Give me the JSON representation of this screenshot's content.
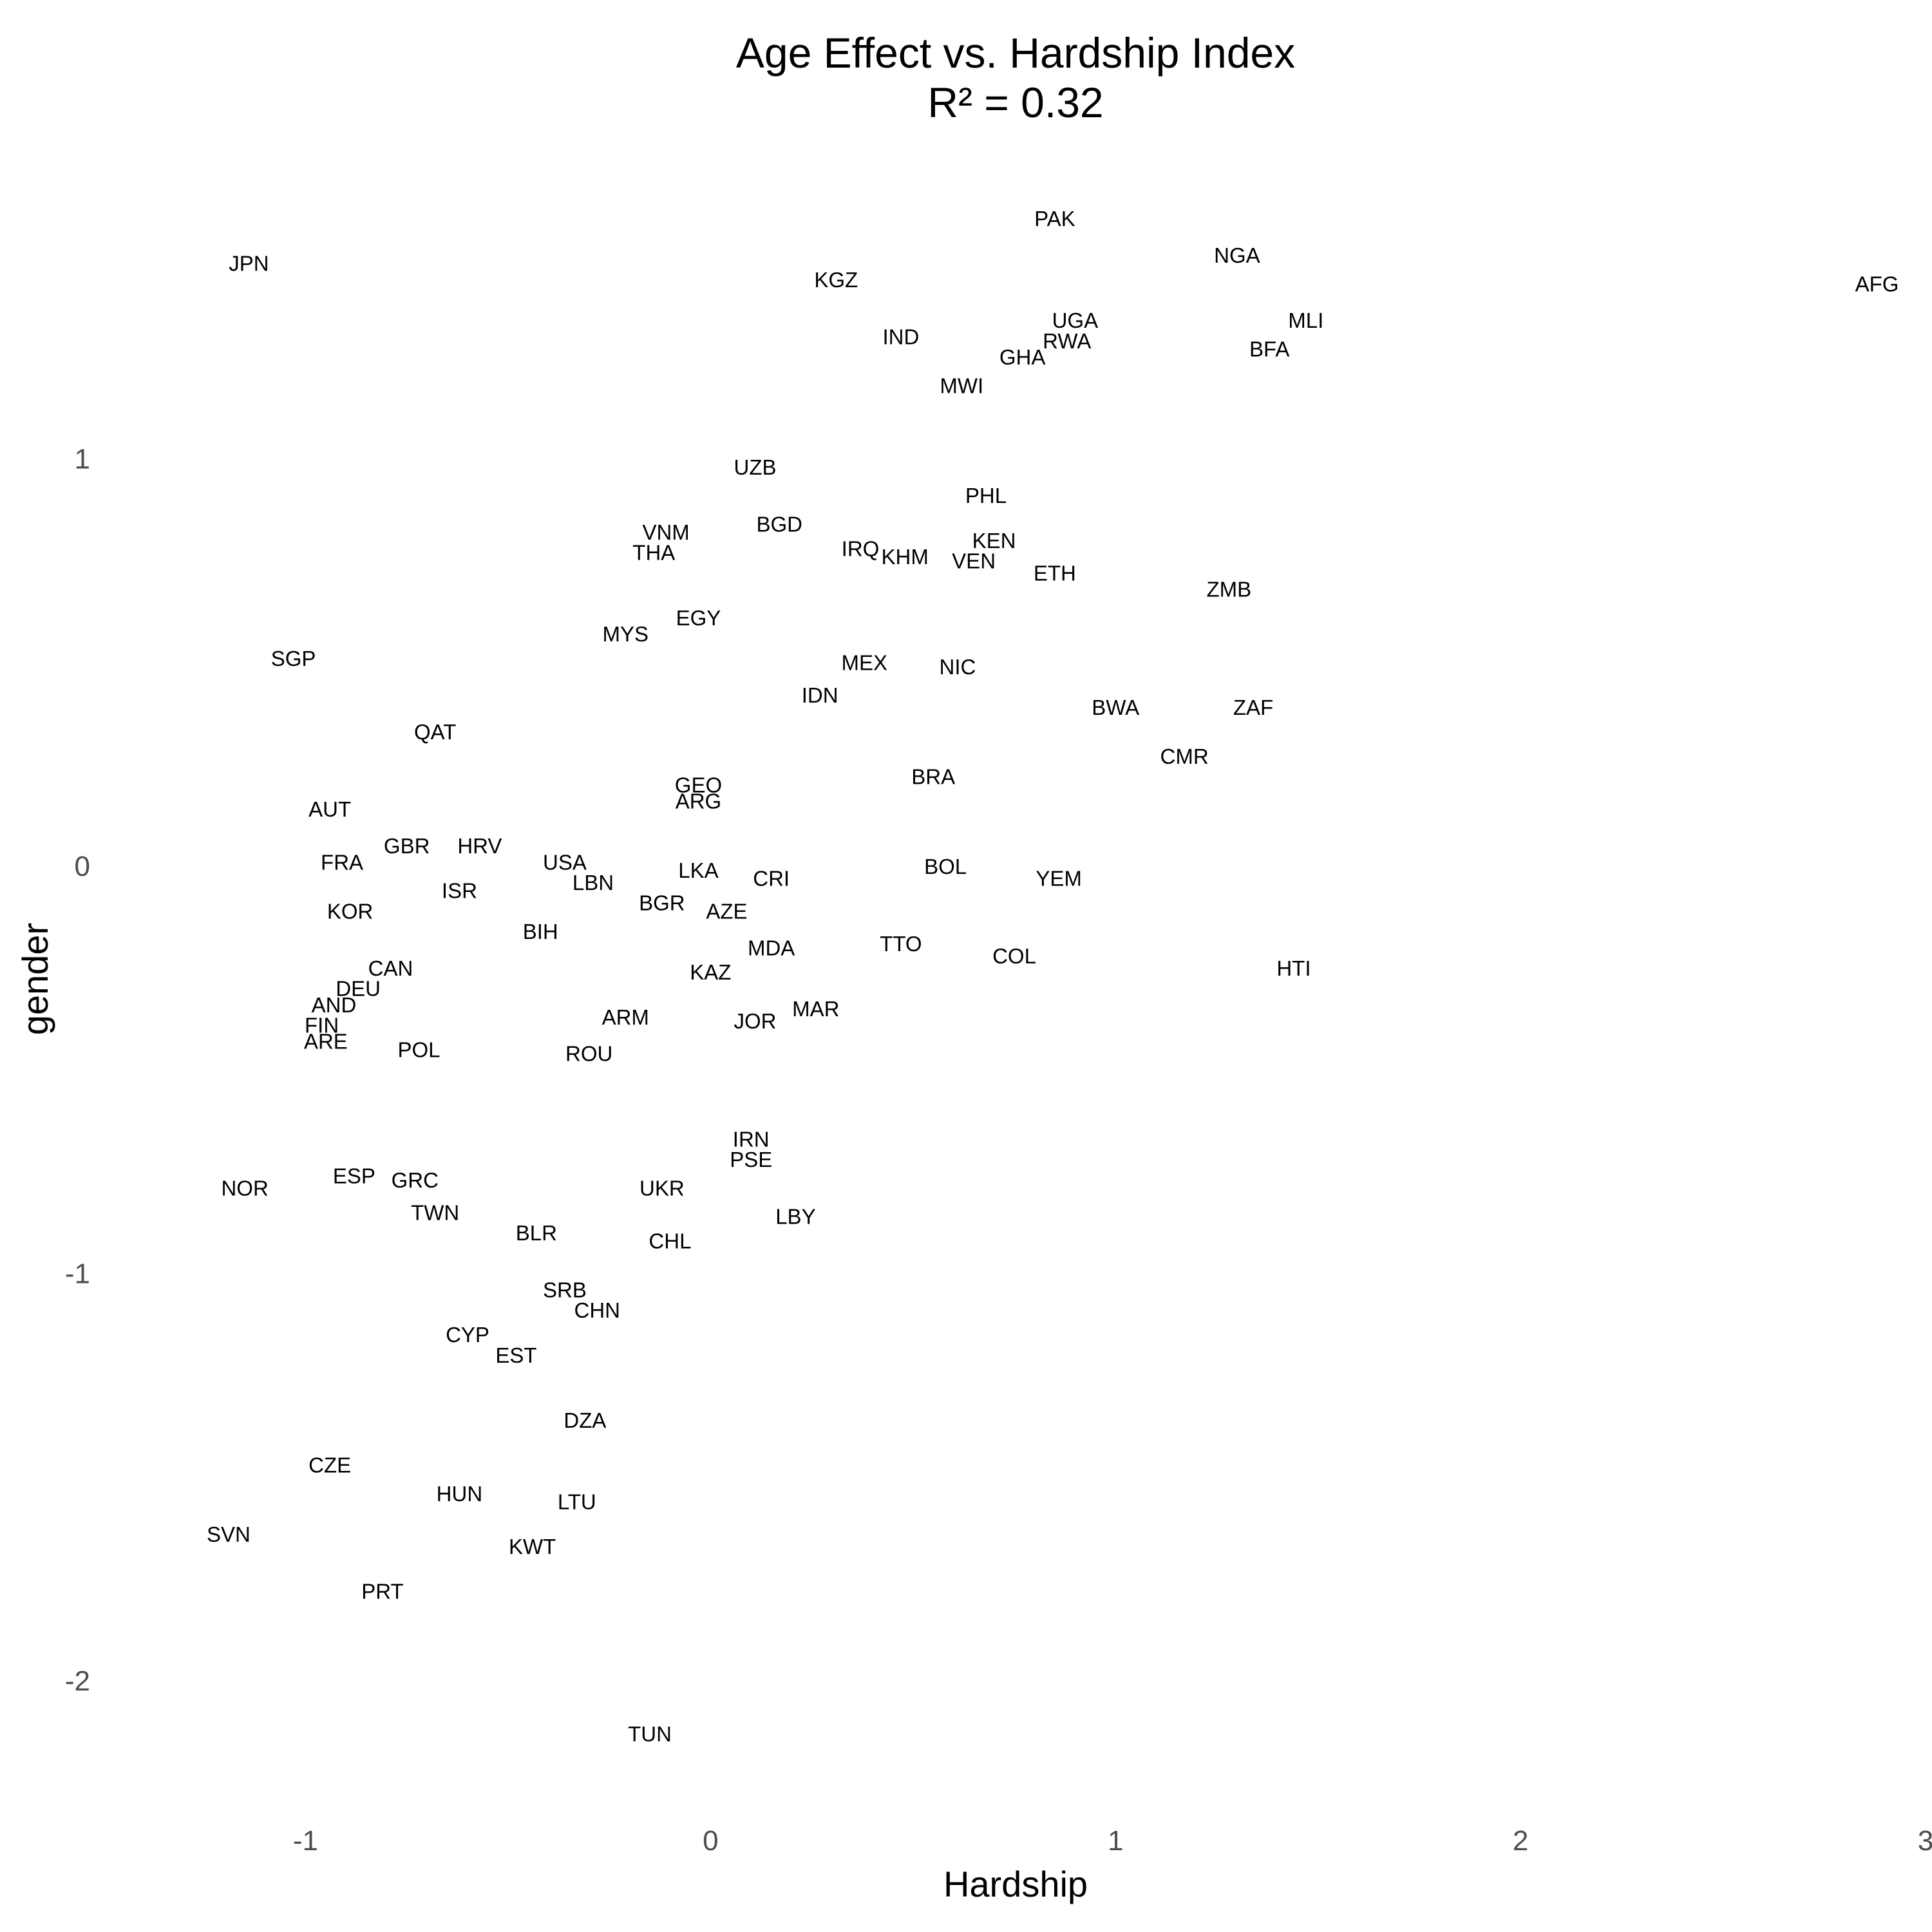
{
  "chart_data": {
    "type": "scatter",
    "title": [
      "Age Effect vs. Hardship Index",
      "R² = 0.32"
    ],
    "xlabel": "Hardship",
    "ylabel": "gender",
    "xlim": [
      -1.5,
      3.0
    ],
    "ylim": [
      -2.3,
      1.7
    ],
    "xticks": [
      -1,
      0,
      1,
      2,
      3
    ],
    "xtick_labels": [
      "-1",
      "0",
      "1",
      "2",
      "3"
    ],
    "yticks": [
      -2,
      -1,
      0,
      1
    ],
    "ytick_labels": [
      "-2",
      "-1",
      "0",
      "1"
    ],
    "grid": false,
    "markers": "text-labels",
    "points": [
      {
        "label": "PAK",
        "x": 0.85,
        "y": 1.59
      },
      {
        "label": "JPN",
        "x": -1.14,
        "y": 1.48
      },
      {
        "label": "NGA",
        "x": 1.3,
        "y": 1.5
      },
      {
        "label": "KGZ",
        "x": 0.31,
        "y": 1.44
      },
      {
        "label": "AFG",
        "x": 2.88,
        "y": 1.43
      },
      {
        "label": "UGA",
        "x": 0.9,
        "y": 1.34
      },
      {
        "label": "MLI",
        "x": 1.47,
        "y": 1.34
      },
      {
        "label": "IND",
        "x": 0.47,
        "y": 1.3
      },
      {
        "label": "RWA",
        "x": 0.88,
        "y": 1.29
      },
      {
        "label": "GHA",
        "x": 0.77,
        "y": 1.25
      },
      {
        "label": "BFA",
        "x": 1.38,
        "y": 1.27
      },
      {
        "label": "MWI",
        "x": 0.62,
        "y": 1.18
      },
      {
        "label": "UZB",
        "x": 0.11,
        "y": 0.98
      },
      {
        "label": "PHL",
        "x": 0.68,
        "y": 0.91
      },
      {
        "label": "BGD",
        "x": 0.17,
        "y": 0.84
      },
      {
        "label": "VNM",
        "x": -0.11,
        "y": 0.82
      },
      {
        "label": "KEN",
        "x": 0.7,
        "y": 0.8
      },
      {
        "label": "IRQ",
        "x": 0.37,
        "y": 0.78
      },
      {
        "label": "THA",
        "x": -0.14,
        "y": 0.77
      },
      {
        "label": "KHM",
        "x": 0.48,
        "y": 0.76
      },
      {
        "label": "VEN",
        "x": 0.65,
        "y": 0.75
      },
      {
        "label": "ETH",
        "x": 0.85,
        "y": 0.72
      },
      {
        "label": "ZMB",
        "x": 1.28,
        "y": 0.68
      },
      {
        "label": "EGY",
        "x": -0.03,
        "y": 0.61
      },
      {
        "label": "MYS",
        "x": -0.21,
        "y": 0.57
      },
      {
        "label": "SGP",
        "x": -1.03,
        "y": 0.51
      },
      {
        "label": "MEX",
        "x": 0.38,
        "y": 0.5
      },
      {
        "label": "NIC",
        "x": 0.61,
        "y": 0.49
      },
      {
        "label": "IDN",
        "x": 0.27,
        "y": 0.42
      },
      {
        "label": "BWA",
        "x": 1.0,
        "y": 0.39
      },
      {
        "label": "ZAF",
        "x": 1.34,
        "y": 0.39
      },
      {
        "label": "QAT",
        "x": -0.68,
        "y": 0.33
      },
      {
        "label": "CMR",
        "x": 1.17,
        "y": 0.27
      },
      {
        "label": "GEO",
        "x": -0.03,
        "y": 0.2
      },
      {
        "label": "BRA",
        "x": 0.55,
        "y": 0.22
      },
      {
        "label": "ARG",
        "x": -0.03,
        "y": 0.16
      },
      {
        "label": "AUT",
        "x": -0.94,
        "y": 0.14
      },
      {
        "label": "GBR",
        "x": -0.75,
        "y": 0.05
      },
      {
        "label": "HRV",
        "x": -0.57,
        "y": 0.05
      },
      {
        "label": "USA",
        "x": -0.36,
        "y": 0.01
      },
      {
        "label": "FRA",
        "x": -0.91,
        "y": 0.01
      },
      {
        "label": "BOL",
        "x": 0.58,
        "y": 0.0
      },
      {
        "label": "LKA",
        "x": -0.03,
        "y": -0.01
      },
      {
        "label": "CRI",
        "x": 0.15,
        "y": -0.03
      },
      {
        "label": "YEM",
        "x": 0.86,
        "y": -0.03
      },
      {
        "label": "LBN",
        "x": -0.29,
        "y": -0.04
      },
      {
        "label": "ISR",
        "x": -0.62,
        "y": -0.06
      },
      {
        "label": "BGR",
        "x": -0.12,
        "y": -0.09
      },
      {
        "label": "KOR",
        "x": -0.89,
        "y": -0.11
      },
      {
        "label": "AZE",
        "x": 0.04,
        "y": -0.11
      },
      {
        "label": "BIH",
        "x": -0.42,
        "y": -0.16
      },
      {
        "label": "TTO",
        "x": 0.47,
        "y": -0.19
      },
      {
        "label": "MDA",
        "x": 0.15,
        "y": -0.2
      },
      {
        "label": "COL",
        "x": 0.75,
        "y": -0.22
      },
      {
        "label": "CAN",
        "x": -0.79,
        "y": -0.25
      },
      {
        "label": "HTI",
        "x": 1.44,
        "y": -0.25
      },
      {
        "label": "KAZ",
        "x": 0.0,
        "y": -0.26
      },
      {
        "label": "DEU",
        "x": -0.87,
        "y": -0.3
      },
      {
        "label": "AND",
        "x": -0.93,
        "y": -0.34
      },
      {
        "label": "MAR",
        "x": 0.26,
        "y": -0.35
      },
      {
        "label": "ARM",
        "x": -0.21,
        "y": -0.37
      },
      {
        "label": "JOR",
        "x": 0.11,
        "y": -0.38
      },
      {
        "label": "FIN",
        "x": -0.96,
        "y": -0.39
      },
      {
        "label": "ARE",
        "x": -0.95,
        "y": -0.43
      },
      {
        "label": "POL",
        "x": -0.72,
        "y": -0.45
      },
      {
        "label": "ROU",
        "x": -0.3,
        "y": -0.46
      },
      {
        "label": "IRN",
        "x": 0.1,
        "y": -0.67
      },
      {
        "label": "PSE",
        "x": 0.1,
        "y": -0.72
      },
      {
        "label": "ESP",
        "x": -0.88,
        "y": -0.76
      },
      {
        "label": "GRC",
        "x": -0.73,
        "y": -0.77
      },
      {
        "label": "NOR",
        "x": -1.15,
        "y": -0.79
      },
      {
        "label": "UKR",
        "x": -0.12,
        "y": -0.79
      },
      {
        "label": "TWN",
        "x": -0.68,
        "y": -0.85
      },
      {
        "label": "LBY",
        "x": 0.21,
        "y": -0.86
      },
      {
        "label": "BLR",
        "x": -0.43,
        "y": -0.9
      },
      {
        "label": "CHL",
        "x": -0.1,
        "y": -0.92
      },
      {
        "label": "SRB",
        "x": -0.36,
        "y": -1.04
      },
      {
        "label": "CHN",
        "x": -0.28,
        "y": -1.09
      },
      {
        "label": "CYP",
        "x": -0.6,
        "y": -1.15
      },
      {
        "label": "EST",
        "x": -0.48,
        "y": -1.2
      },
      {
        "label": "DZA",
        "x": -0.31,
        "y": -1.36
      },
      {
        "label": "CZE",
        "x": -0.94,
        "y": -1.47
      },
      {
        "label": "HUN",
        "x": -0.62,
        "y": -1.54
      },
      {
        "label": "LTU",
        "x": -0.33,
        "y": -1.56
      },
      {
        "label": "SVN",
        "x": -1.19,
        "y": -1.64
      },
      {
        "label": "KWT",
        "x": -0.44,
        "y": -1.67
      },
      {
        "label": "PRT",
        "x": -0.81,
        "y": -1.78
      },
      {
        "label": "TUN",
        "x": -0.15,
        "y": -2.13
      }
    ]
  }
}
